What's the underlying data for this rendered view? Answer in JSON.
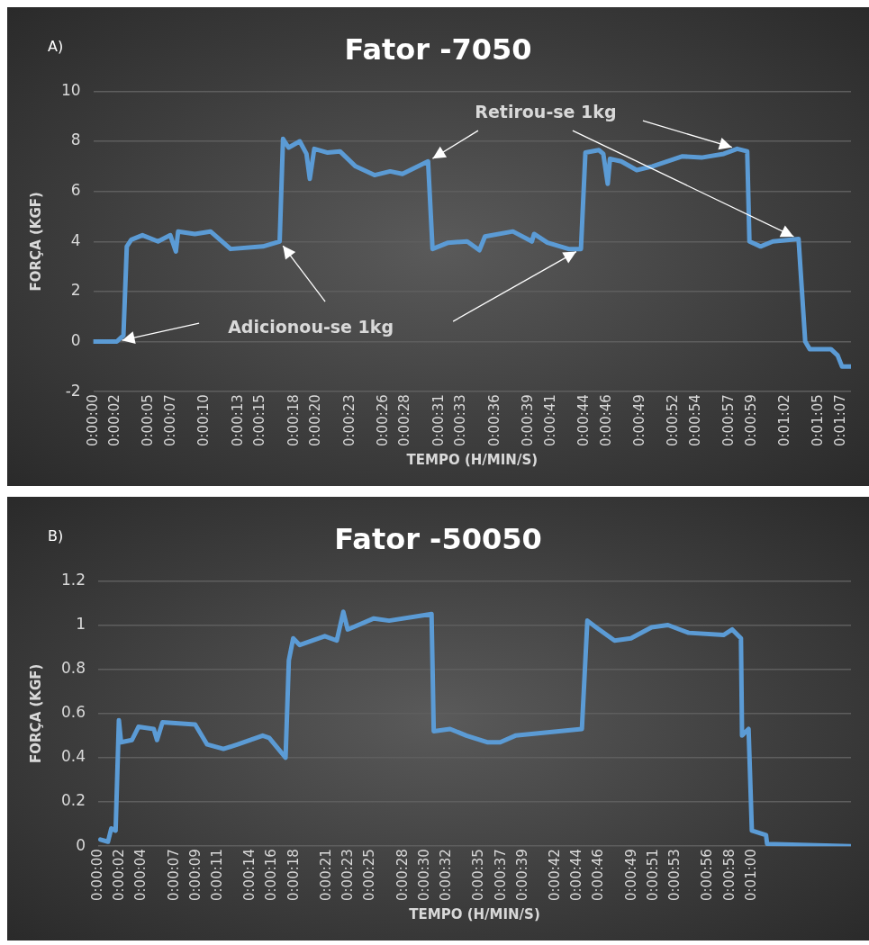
{
  "chart_data": [
    {
      "type": "line",
      "title": "Fator -7050",
      "xlabel": "TEMPO (H/MIN/S)",
      "ylabel": "FORÇA (KGF)",
      "annotations": [
        "A)",
        {
          "text": "Adicionou-se 1kg",
          "x": 16.7,
          "y": 4.0
        },
        {
          "text": "Retirou-se 1kg",
          "x": 30,
          "y": 7.2
        }
      ],
      "grid": "y",
      "ylim": [
        -2,
        10
      ],
      "yticks": [
        -2,
        0,
        2,
        4,
        6,
        8,
        10
      ],
      "xlim": [
        0,
        67.9
      ],
      "xticks": [
        {
          "value": 0,
          "label": "0:00:00"
        },
        {
          "value": 2,
          "label": "0:00:02"
        },
        {
          "value": 5,
          "label": "0:00:05"
        },
        {
          "value": 7,
          "label": "0:00:07"
        },
        {
          "value": 10,
          "label": "0:00:10"
        },
        {
          "value": 13,
          "label": "0:00:13"
        },
        {
          "value": 15,
          "label": "0:00:15"
        },
        {
          "value": 18,
          "label": "0:00:18"
        },
        {
          "value": 20,
          "label": "0:00:20"
        },
        {
          "value": 23,
          "label": "0:00:23"
        },
        {
          "value": 26,
          "label": "0:00:26"
        },
        {
          "value": 28,
          "label": "0:00:28"
        },
        {
          "value": 31,
          "label": "0:00:31"
        },
        {
          "value": 33,
          "label": "0:00:33"
        },
        {
          "value": 36,
          "label": "0:00:36"
        },
        {
          "value": 39,
          "label": "0:00:39"
        },
        {
          "value": 41,
          "label": "0:00:41"
        },
        {
          "value": 44,
          "label": "0:00:44"
        },
        {
          "value": 46,
          "label": "0:00:46"
        },
        {
          "value": 49,
          "label": "0:00:49"
        },
        {
          "value": 52,
          "label": "0:00:52"
        },
        {
          "value": 54,
          "label": "0:00:54"
        },
        {
          "value": 57,
          "label": "0:00:57"
        },
        {
          "value": 59,
          "label": "0:00:59"
        },
        {
          "value": 62,
          "label": "0:01:02"
        },
        {
          "value": 65,
          "label": "0:01:05"
        },
        {
          "value": 67,
          "label": "0:01:07"
        }
      ],
      "series": [
        {
          "color": "#5b9bd5",
          "x": [
            0,
            2.1,
            2.7,
            3.0,
            3.4,
            4.4,
            5.8,
            6.9,
            7.4,
            7.6,
            9.1,
            10.5,
            12.3,
            15.2,
            16.7,
            17.0,
            17.5,
            18.5,
            19.1,
            19.4,
            19.8,
            21.0,
            22.1,
            23.5,
            25.2,
            26.6,
            27.7,
            30.0,
            30.4,
            31.8,
            33.5,
            34.6,
            35.1,
            37.6,
            39.3,
            39.5,
            40.7,
            42.6,
            43.7,
            44.1,
            45.3,
            45.7,
            46.1,
            46.3,
            47.3,
            48.7,
            50.1,
            52.8,
            54.5,
            56.5,
            57.7,
            58.6,
            58.8,
            59.8,
            60.9,
            63.2,
            63.8,
            64.2,
            66.1,
            66.7,
            67.1,
            67.9
          ],
          "values": [
            0,
            0,
            0.25,
            3.8,
            4.07,
            4.25,
            4.0,
            4.25,
            3.6,
            4.4,
            4.3,
            4.4,
            3.7,
            3.8,
            4.0,
            8.1,
            7.75,
            8.0,
            7.5,
            6.5,
            7.7,
            7.55,
            7.6,
            7.0,
            6.65,
            6.8,
            6.7,
            7.2,
            3.7,
            3.95,
            4.0,
            3.65,
            4.2,
            4.4,
            4.0,
            4.3,
            3.95,
            3.7,
            3.7,
            7.55,
            7.65,
            7.5,
            6.3,
            7.3,
            7.2,
            6.85,
            7.0,
            7.4,
            7.35,
            7.5,
            7.7,
            7.6,
            4.0,
            3.8,
            4.0,
            4.1,
            0.0,
            -0.3,
            -0.3,
            -0.55,
            -1.0,
            -1.0
          ]
        }
      ]
    },
    {
      "type": "line",
      "title": "Fator -50050",
      "xlabel": "TEMPO (H/MIN/S)",
      "ylabel": "FORÇA (KGF)",
      "annotations": [
        "B)"
      ],
      "grid": "y",
      "ylim": [
        0,
        1.2
      ],
      "yticks": [
        0,
        0.2,
        0.4,
        0.6,
        0.8,
        1,
        1.2
      ],
      "xlim": [
        0,
        69.1
      ],
      "xticks": [
        {
          "value": 0,
          "label": "0:00:00"
        },
        {
          "value": 2,
          "label": "0:00:02"
        },
        {
          "value": 4,
          "label": "0:00:04"
        },
        {
          "value": 7,
          "label": "0:00:07"
        },
        {
          "value": 9,
          "label": "0:00:09"
        },
        {
          "value": 11,
          "label": "0:00:11"
        },
        {
          "value": 14,
          "label": "0:00:14"
        },
        {
          "value": 16,
          "label": "0:00:16"
        },
        {
          "value": 18,
          "label": "0:00:18"
        },
        {
          "value": 21,
          "label": "0:00:21"
        },
        {
          "value": 23,
          "label": "0:00:23"
        },
        {
          "value": 25,
          "label": "0:00:25"
        },
        {
          "value": 28,
          "label": "0:00:28"
        },
        {
          "value": 30,
          "label": "0:00:30"
        },
        {
          "value": 32,
          "label": "0:00:32"
        },
        {
          "value": 35,
          "label": "0:00:35"
        },
        {
          "value": 37,
          "label": "0:00:37"
        },
        {
          "value": 39,
          "label": "0:00:39"
        },
        {
          "value": 42,
          "label": "0:00:42"
        },
        {
          "value": 44,
          "label": "0:00:44"
        },
        {
          "value": 46,
          "label": "0:00:46"
        },
        {
          "value": 49,
          "label": "0:00:49"
        },
        {
          "value": 51,
          "label": "0:00:51"
        },
        {
          "value": 53,
          "label": "0:00:53"
        },
        {
          "value": 56,
          "label": "0:00:56"
        },
        {
          "value": 58,
          "label": "0:00:58"
        },
        {
          "value": 60,
          "label": "0:01:00"
        }
      ],
      "series": [
        {
          "color": "#5b9bd5",
          "x": [
            0.2,
            0.9,
            1.2,
            1.6,
            1.9,
            2.1,
            3.1,
            3.7,
            5.1,
            5.4,
            5.9,
            8.9,
            10.0,
            11.5,
            12.8,
            15.1,
            15.7,
            17.2,
            17.5,
            17.9,
            18.5,
            20.8,
            21.9,
            22.5,
            22.9,
            25.3,
            26.7,
            30.6,
            30.8,
            32.3,
            33.8,
            35.7,
            36.9,
            38.3,
            42.3,
            44.4,
            44.9,
            45.7,
            47.4,
            48.9,
            50.8,
            52.3,
            54.2,
            57.4,
            58.2,
            59.0,
            59.1,
            59.7,
            60.0,
            61.3,
            61.4,
            69.1
          ],
          "values": [
            0.03,
            0.02,
            0.08,
            0.07,
            0.57,
            0.47,
            0.48,
            0.54,
            0.53,
            0.48,
            0.56,
            0.55,
            0.46,
            0.44,
            0.46,
            0.5,
            0.49,
            0.4,
            0.84,
            0.94,
            0.91,
            0.95,
            0.93,
            1.06,
            0.98,
            1.03,
            1.02,
            1.05,
            0.52,
            0.53,
            0.5,
            0.47,
            0.47,
            0.5,
            0.52,
            0.53,
            1.02,
            0.99,
            0.93,
            0.94,
            0.99,
            1.0,
            0.965,
            0.955,
            0.98,
            0.94,
            0.5,
            0.53,
            0.07,
            0.05,
            0.01,
            0
          ]
        }
      ]
    }
  ]
}
